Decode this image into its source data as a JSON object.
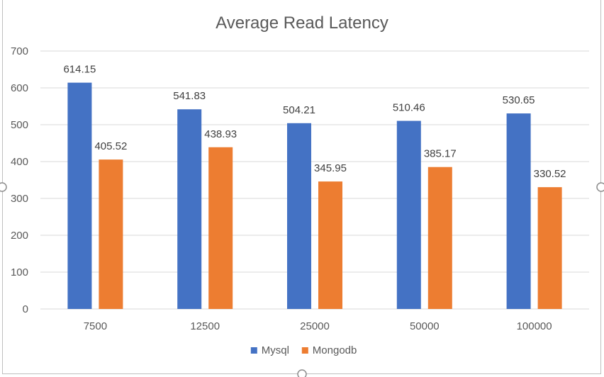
{
  "chart_data": {
    "type": "bar",
    "title": "Average Read Latency",
    "xlabel": "",
    "ylabel": "",
    "categories": [
      "7500",
      "12500",
      "25000",
      "50000",
      "100000"
    ],
    "series": [
      {
        "name": "Mysql",
        "color": "#4472C4",
        "values": [
          614.15,
          541.83,
          504.21,
          510.46,
          530.65
        ],
        "labels": [
          "614.15",
          "541.83",
          "504.21",
          "510.46",
          "530.65"
        ]
      },
      {
        "name": "Mongodb",
        "color": "#ED7D31",
        "values": [
          405.52,
          438.93,
          345.95,
          385.17,
          330.52
        ],
        "labels": [
          "405.52",
          "438.93",
          "345.95",
          "385.17",
          "330.52"
        ]
      }
    ],
    "ylim": [
      0,
      700
    ],
    "yticks": [
      "0",
      "100",
      "200",
      "300",
      "400",
      "500",
      "600",
      "700"
    ],
    "grid": true,
    "legend_position": "bottom"
  }
}
